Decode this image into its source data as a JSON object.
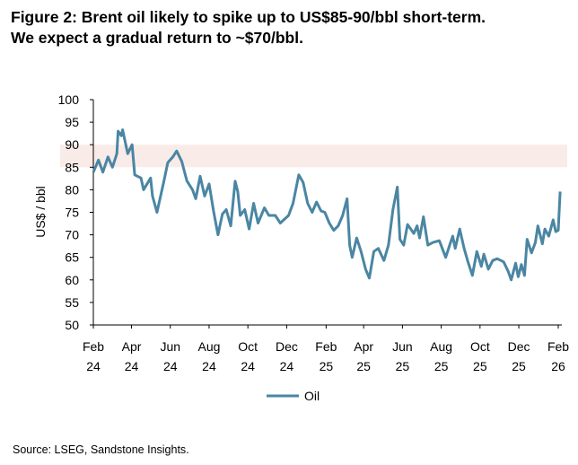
{
  "title_lines": [
    "Figure 2: Brent oil likely to spike up to US$85-90/bbl short-term.",
    "We expect a gradual return to ~$70/bbl."
  ],
  "source": "Source: LSEG, Sandstone Insights.",
  "chart_data": {
    "type": "line",
    "ylabel": "US$ / bbl",
    "xlabel": "",
    "ylim": [
      50,
      100
    ],
    "yticks": [
      50,
      55,
      60,
      65,
      70,
      75,
      80,
      85,
      90,
      95,
      100
    ],
    "xlim": [
      "2024-02-01",
      "2026-02-01"
    ],
    "xticks": [
      {
        "date": "2024-02-01",
        "month": "Feb",
        "year": "24"
      },
      {
        "date": "2024-04-01",
        "month": "Apr",
        "year": "24"
      },
      {
        "date": "2024-06-01",
        "month": "Jun",
        "year": "24"
      },
      {
        "date": "2024-08-01",
        "month": "Aug",
        "year": "24"
      },
      {
        "date": "2024-10-01",
        "month": "Oct",
        "year": "24"
      },
      {
        "date": "2024-12-01",
        "month": "Dec",
        "year": "24"
      },
      {
        "date": "2025-02-01",
        "month": "Feb",
        "year": "25"
      },
      {
        "date": "2025-04-01",
        "month": "Apr",
        "year": "25"
      },
      {
        "date": "2025-06-01",
        "month": "Jun",
        "year": "25"
      },
      {
        "date": "2025-08-01",
        "month": "Aug",
        "year": "25"
      },
      {
        "date": "2025-10-01",
        "month": "Oct",
        "year": "25"
      },
      {
        "date": "2025-12-01",
        "month": "Dec",
        "year": "25"
      },
      {
        "date": "2026-02-01",
        "month": "Feb",
        "year": "26"
      }
    ],
    "grid": false,
    "legend_placement": "bottom",
    "highlight_band": {
      "from": 85,
      "to": 90,
      "color": "#f9ebe8"
    },
    "series": [
      {
        "name": "Oil",
        "color": "#4a86a3",
        "points": [
          [
            "2024-02-01",
            83.9
          ],
          [
            "2024-02-09",
            86.6
          ],
          [
            "2024-02-16",
            83.9
          ],
          [
            "2024-02-24",
            87.3
          ],
          [
            "2024-03-02",
            85
          ],
          [
            "2024-03-09",
            88
          ],
          [
            "2024-03-11",
            93
          ],
          [
            "2024-03-16",
            92
          ],
          [
            "2024-03-18",
            93.3
          ],
          [
            "2024-03-26",
            88
          ],
          [
            "2024-04-02",
            90
          ],
          [
            "2024-04-06",
            83.3
          ],
          [
            "2024-04-16",
            82.6
          ],
          [
            "2024-04-20",
            80
          ],
          [
            "2024-05-01",
            82.6
          ],
          [
            "2024-05-04",
            78.6
          ],
          [
            "2024-05-11",
            75
          ],
          [
            "2024-05-22",
            82
          ],
          [
            "2024-05-28",
            86
          ],
          [
            "2024-06-05",
            87.3
          ],
          [
            "2024-06-11",
            88.6
          ],
          [
            "2024-06-19",
            86.3
          ],
          [
            "2024-06-27",
            82
          ],
          [
            "2024-07-06",
            80
          ],
          [
            "2024-07-11",
            78
          ],
          [
            "2024-07-18",
            83
          ],
          [
            "2024-07-25",
            78.6
          ],
          [
            "2024-08-01",
            81.3
          ],
          [
            "2024-08-08",
            75.3
          ],
          [
            "2024-08-15",
            70
          ],
          [
            "2024-08-22",
            74.6
          ],
          [
            "2024-08-28",
            75.6
          ],
          [
            "2024-09-04",
            72
          ],
          [
            "2024-09-11",
            81.9
          ],
          [
            "2024-09-15",
            79.6
          ],
          [
            "2024-09-19",
            74.3
          ],
          [
            "2024-09-26",
            75.6
          ],
          [
            "2024-10-03",
            71.3
          ],
          [
            "2024-10-10",
            77
          ],
          [
            "2024-10-17",
            72.6
          ],
          [
            "2024-10-27",
            76
          ],
          [
            "2024-11-03",
            74.3
          ],
          [
            "2024-11-13",
            74.3
          ],
          [
            "2024-11-21",
            72.6
          ],
          [
            "2024-12-04",
            74.3
          ],
          [
            "2024-12-11",
            77
          ],
          [
            "2024-12-20",
            83.3
          ],
          [
            "2024-12-27",
            81.6
          ],
          [
            "2025-01-03",
            77
          ],
          [
            "2025-01-10",
            75
          ],
          [
            "2025-01-17",
            77.3
          ],
          [
            "2025-01-24",
            75.3
          ],
          [
            "2025-01-30",
            75
          ],
          [
            "2025-02-06",
            72.6
          ],
          [
            "2025-02-13",
            71
          ],
          [
            "2025-02-20",
            72
          ],
          [
            "2025-02-27",
            74.3
          ],
          [
            "2025-03-06",
            78
          ],
          [
            "2025-03-10",
            67.7
          ],
          [
            "2025-03-14",
            65
          ],
          [
            "2025-03-21",
            69.3
          ],
          [
            "2025-03-28",
            66.3
          ],
          [
            "2025-04-04",
            62.4
          ],
          [
            "2025-04-10",
            60.4
          ],
          [
            "2025-04-17",
            66.3
          ],
          [
            "2025-04-24",
            67
          ],
          [
            "2025-05-03",
            64.3
          ],
          [
            "2025-05-10",
            67.7
          ],
          [
            "2025-05-17",
            75.6
          ],
          [
            "2025-05-24",
            80.6
          ],
          [
            "2025-05-28",
            69
          ],
          [
            "2025-06-03",
            67.7
          ],
          [
            "2025-06-09",
            72.3
          ],
          [
            "2025-06-19",
            70.3
          ],
          [
            "2025-06-24",
            72
          ],
          [
            "2025-06-28",
            69.3
          ],
          [
            "2025-07-04",
            74
          ],
          [
            "2025-07-11",
            67.7
          ],
          [
            "2025-07-19",
            68.3
          ],
          [
            "2025-07-29",
            68.7
          ],
          [
            "2025-08-08",
            65
          ],
          [
            "2025-08-15",
            68
          ],
          [
            "2025-08-19",
            69.7
          ],
          [
            "2025-08-23",
            67
          ],
          [
            "2025-08-30",
            71.3
          ],
          [
            "2025-09-06",
            67
          ],
          [
            "2025-09-12",
            64
          ],
          [
            "2025-09-19",
            61
          ],
          [
            "2025-09-26",
            66.3
          ],
          [
            "2025-10-03",
            63
          ],
          [
            "2025-10-07",
            65.7
          ],
          [
            "2025-10-14",
            62.4
          ],
          [
            "2025-10-21",
            64.3
          ],
          [
            "2025-10-28",
            64.7
          ],
          [
            "2025-11-07",
            64
          ],
          [
            "2025-11-14",
            62
          ],
          [
            "2025-11-19",
            60
          ],
          [
            "2025-11-26",
            63.7
          ],
          [
            "2025-11-30",
            60.7
          ],
          [
            "2025-12-05",
            63.4
          ],
          [
            "2025-12-10",
            61
          ],
          [
            "2025-12-14",
            69
          ],
          [
            "2025-12-21",
            66
          ],
          [
            "2025-12-27",
            68.3
          ],
          [
            "2025-12-31",
            72
          ],
          [
            "2026-01-07",
            68
          ],
          [
            "2026-01-11",
            71.3
          ],
          [
            "2026-01-17",
            69.7
          ],
          [
            "2026-01-24",
            73.3
          ],
          [
            "2026-01-28",
            70.7
          ],
          [
            "2026-02-01",
            71
          ],
          [
            "2026-02-04",
            79.6
          ]
        ]
      }
    ]
  }
}
